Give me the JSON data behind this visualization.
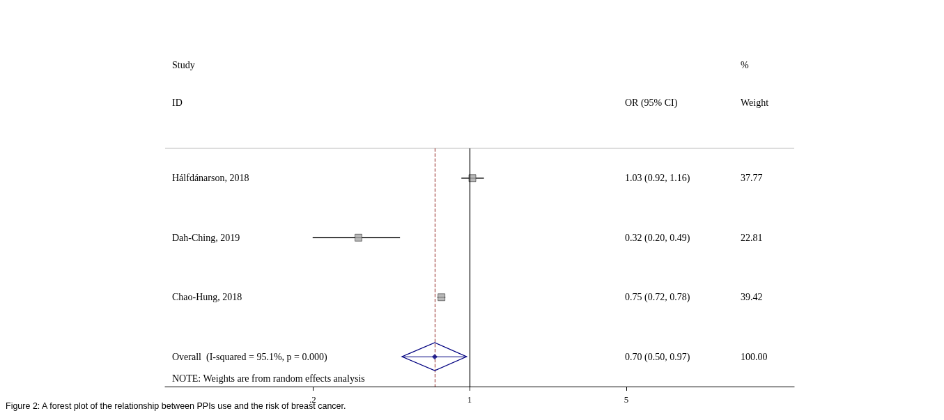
{
  "chart_data": {
    "type": "scatter",
    "orientation": "horizontal",
    "log": "x",
    "grid": false,
    "categories": [
      "Hálfdánarson, 2018",
      "Dah-Ching, 2019",
      "Chao-Hung, 2018",
      "Overall  (I-squared = 95.1%, p = 0.000)"
    ],
    "series": [
      {
        "color": "#000000",
        "marker": "square",
        "values": [
          1.03,
          0.32,
          0.75,
          null
        ],
        "errors": [
          [
            0.92,
            1.16
          ],
          [
            0.2,
            0.49
          ],
          [
            0.72,
            0.78
          ],
          null
        ]
      },
      {
        "color": "#000080",
        "marker": "diamond",
        "values": [
          null,
          null,
          null,
          0.7
        ],
        "errors": [
          null,
          null,
          null,
          [
            0.5,
            0.97
          ]
        ]
      }
    ],
    "xlim": [
      0.044,
      28
    ],
    "xticks": [
      {
        "value": 0.2,
        "label": ".2"
      },
      1,
      5
    ],
    "ref_lines": [
      {
        "axis": "x",
        "value": 1,
        "color": "#000000",
        "line_style": "solid"
      },
      {
        "axis": "x",
        "value": 0.7,
        "color": "#a0403c",
        "line_style": "dashed"
      }
    ],
    "annotations": [
      "Study",
      "ID",
      "OR (95% CI)",
      "%",
      "Weight",
      "1.03 (0.92, 1.16)",
      "37.77",
      "0.32 (0.20, 0.49)",
      "22.81",
      "0.75 (0.72, 0.78)",
      "39.42",
      "0.70 (0.50, 0.97)",
      "100.00",
      "NOTE: Weights are from random effects analysis",
      "Figure 2: A forest plot of the relationship between PPIs use and the risk of breast cancer."
    ]
  }
}
